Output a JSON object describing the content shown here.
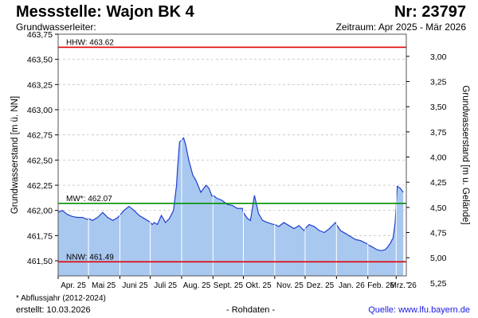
{
  "header": {
    "title": "Messstelle: Wajon BK 4",
    "number": "Nr: 23797",
    "subtitle": "Grundwasserleiter:",
    "period": "Zeitraum: Apr 2025 - Mär 2026"
  },
  "footer": {
    "footnote": "* Abflussjahr (2012-2024)",
    "created": "erstellt:  10.03.2026",
    "rawdata": "- Rohdaten -",
    "source": "Quelle: www.lfu.bayern.de"
  },
  "colors": {
    "fill": "#a9c8f0",
    "line": "#1f3fd0",
    "hhw": "#e00000",
    "mw": "#009000",
    "nnw": "#e00000",
    "grid": "#cccccc",
    "vgrid": "#ffffff"
  },
  "chart_data": {
    "type": "area",
    "ylabel_left": "Grundwasserstand [m ü. NN]",
    "ylabel_right": "Grundwasserstand [m u. Gelände]",
    "ylim": [
      461.35,
      463.75
    ],
    "yticks_left": [
      "463,75",
      "463,50",
      "463,25",
      "463,00",
      "462,75",
      "462,50",
      "462,25",
      "462,00",
      "461,75",
      "461,50"
    ],
    "ytick_left_values": [
      463.75,
      463.5,
      463.25,
      463.0,
      462.75,
      462.5,
      462.25,
      462.0,
      461.75,
      461.5
    ],
    "yticks_right": [
      "3,00",
      "3,25",
      "3,50",
      "3,75",
      "4,00",
      "4,25",
      "4,50",
      "4,75",
      "5,00",
      "5,25"
    ],
    "ytick_right_values": [
      463.53,
      463.28,
      463.03,
      462.78,
      462.53,
      462.28,
      462.03,
      461.78,
      461.53,
      461.28
    ],
    "x_months": [
      "Apr. 25",
      "Mai 25",
      "Juni 25",
      "Juli 25",
      "Aug. 25",
      "Sept. 25",
      "Okt. 25",
      "Nov. 25",
      "Dez. 25",
      "Jan. 26",
      "Feb. 26",
      "Mrz. 26"
    ],
    "reference_lines": [
      {
        "label": "HHW: 463.62",
        "value": 463.62,
        "kind": "hhw"
      },
      {
        "label": "MW*: 462.07",
        "value": 462.07,
        "kind": "mw"
      },
      {
        "label": "NNW: 461.49",
        "value": 461.49,
        "kind": "nnw"
      }
    ],
    "series": [
      {
        "dates": [
          "2025-04-01",
          "2025-04-05",
          "2025-04-10",
          "2025-04-15",
          "2025-04-20",
          "2025-04-25",
          "2025-04-30",
          "2025-05-01",
          "2025-05-05",
          "2025-05-10",
          "2025-05-15",
          "2025-05-20",
          "2025-05-25",
          "2025-05-30",
          "2025-06-05",
          "2025-06-10",
          "2025-06-15",
          "2025-06-20",
          "2025-06-25",
          "2025-06-30",
          "2025-07-01",
          "2025-07-03",
          "2025-07-05",
          "2025-07-08",
          "2025-07-12",
          "2025-07-16",
          "2025-07-20",
          "2025-07-24",
          "2025-07-27",
          "2025-07-28",
          "2025-07-30",
          "2025-08-01",
          "2025-08-03",
          "2025-08-05",
          "2025-08-08",
          "2025-08-12",
          "2025-08-15",
          "2025-08-20",
          "2025-08-25",
          "2025-08-28",
          "2025-08-31",
          "2025-09-01",
          "2025-09-05",
          "2025-09-10",
          "2025-09-15",
          "2025-09-20",
          "2025-09-25",
          "2025-09-30",
          "2025-10-01",
          "2025-10-03",
          "2025-10-05",
          "2025-10-08",
          "2025-10-12",
          "2025-10-16",
          "2025-10-20",
          "2025-10-25",
          "2025-10-31",
          "2025-11-01",
          "2025-11-05",
          "2025-11-10",
          "2025-11-15",
          "2025-11-20",
          "2025-11-25",
          "2025-11-30",
          "2025-12-01",
          "2025-12-05",
          "2025-12-10",
          "2025-12-15",
          "2025-12-20",
          "2025-12-25",
          "2025-12-31",
          "2026-01-01",
          "2026-01-05",
          "2026-01-10",
          "2026-01-15",
          "2026-01-20",
          "2026-01-25",
          "2026-01-31",
          "2026-02-01",
          "2026-02-05",
          "2026-02-10",
          "2026-02-14",
          "2026-02-18",
          "2026-02-20",
          "2026-02-23",
          "2026-02-26",
          "2026-02-28",
          "2026-03-02",
          "2026-03-05",
          "2026-03-08"
        ],
        "values": [
          461.98,
          462.0,
          461.96,
          461.94,
          461.93,
          461.93,
          461.91,
          461.92,
          461.9,
          461.93,
          461.98,
          461.93,
          461.9,
          461.93,
          462.0,
          462.04,
          462.0,
          461.95,
          461.92,
          461.89,
          461.88,
          461.86,
          461.88,
          461.86,
          461.95,
          461.88,
          461.92,
          462.0,
          462.25,
          462.42,
          462.68,
          462.7,
          462.72,
          462.65,
          462.5,
          462.35,
          462.3,
          462.18,
          462.25,
          462.22,
          462.14,
          462.15,
          462.12,
          462.1,
          462.06,
          462.05,
          462.02,
          462.02,
          461.98,
          461.95,
          461.92,
          461.9,
          462.15,
          461.97,
          461.9,
          461.88,
          461.86,
          461.86,
          461.84,
          461.88,
          461.85,
          461.82,
          461.85,
          461.8,
          461.82,
          461.86,
          461.84,
          461.8,
          461.78,
          461.82,
          461.88,
          461.86,
          461.8,
          461.77,
          461.74,
          461.71,
          461.7,
          461.67,
          461.66,
          461.64,
          461.61,
          461.6,
          461.61,
          461.63,
          461.67,
          461.73,
          461.88,
          462.24,
          462.22,
          462.18
        ]
      }
    ]
  }
}
